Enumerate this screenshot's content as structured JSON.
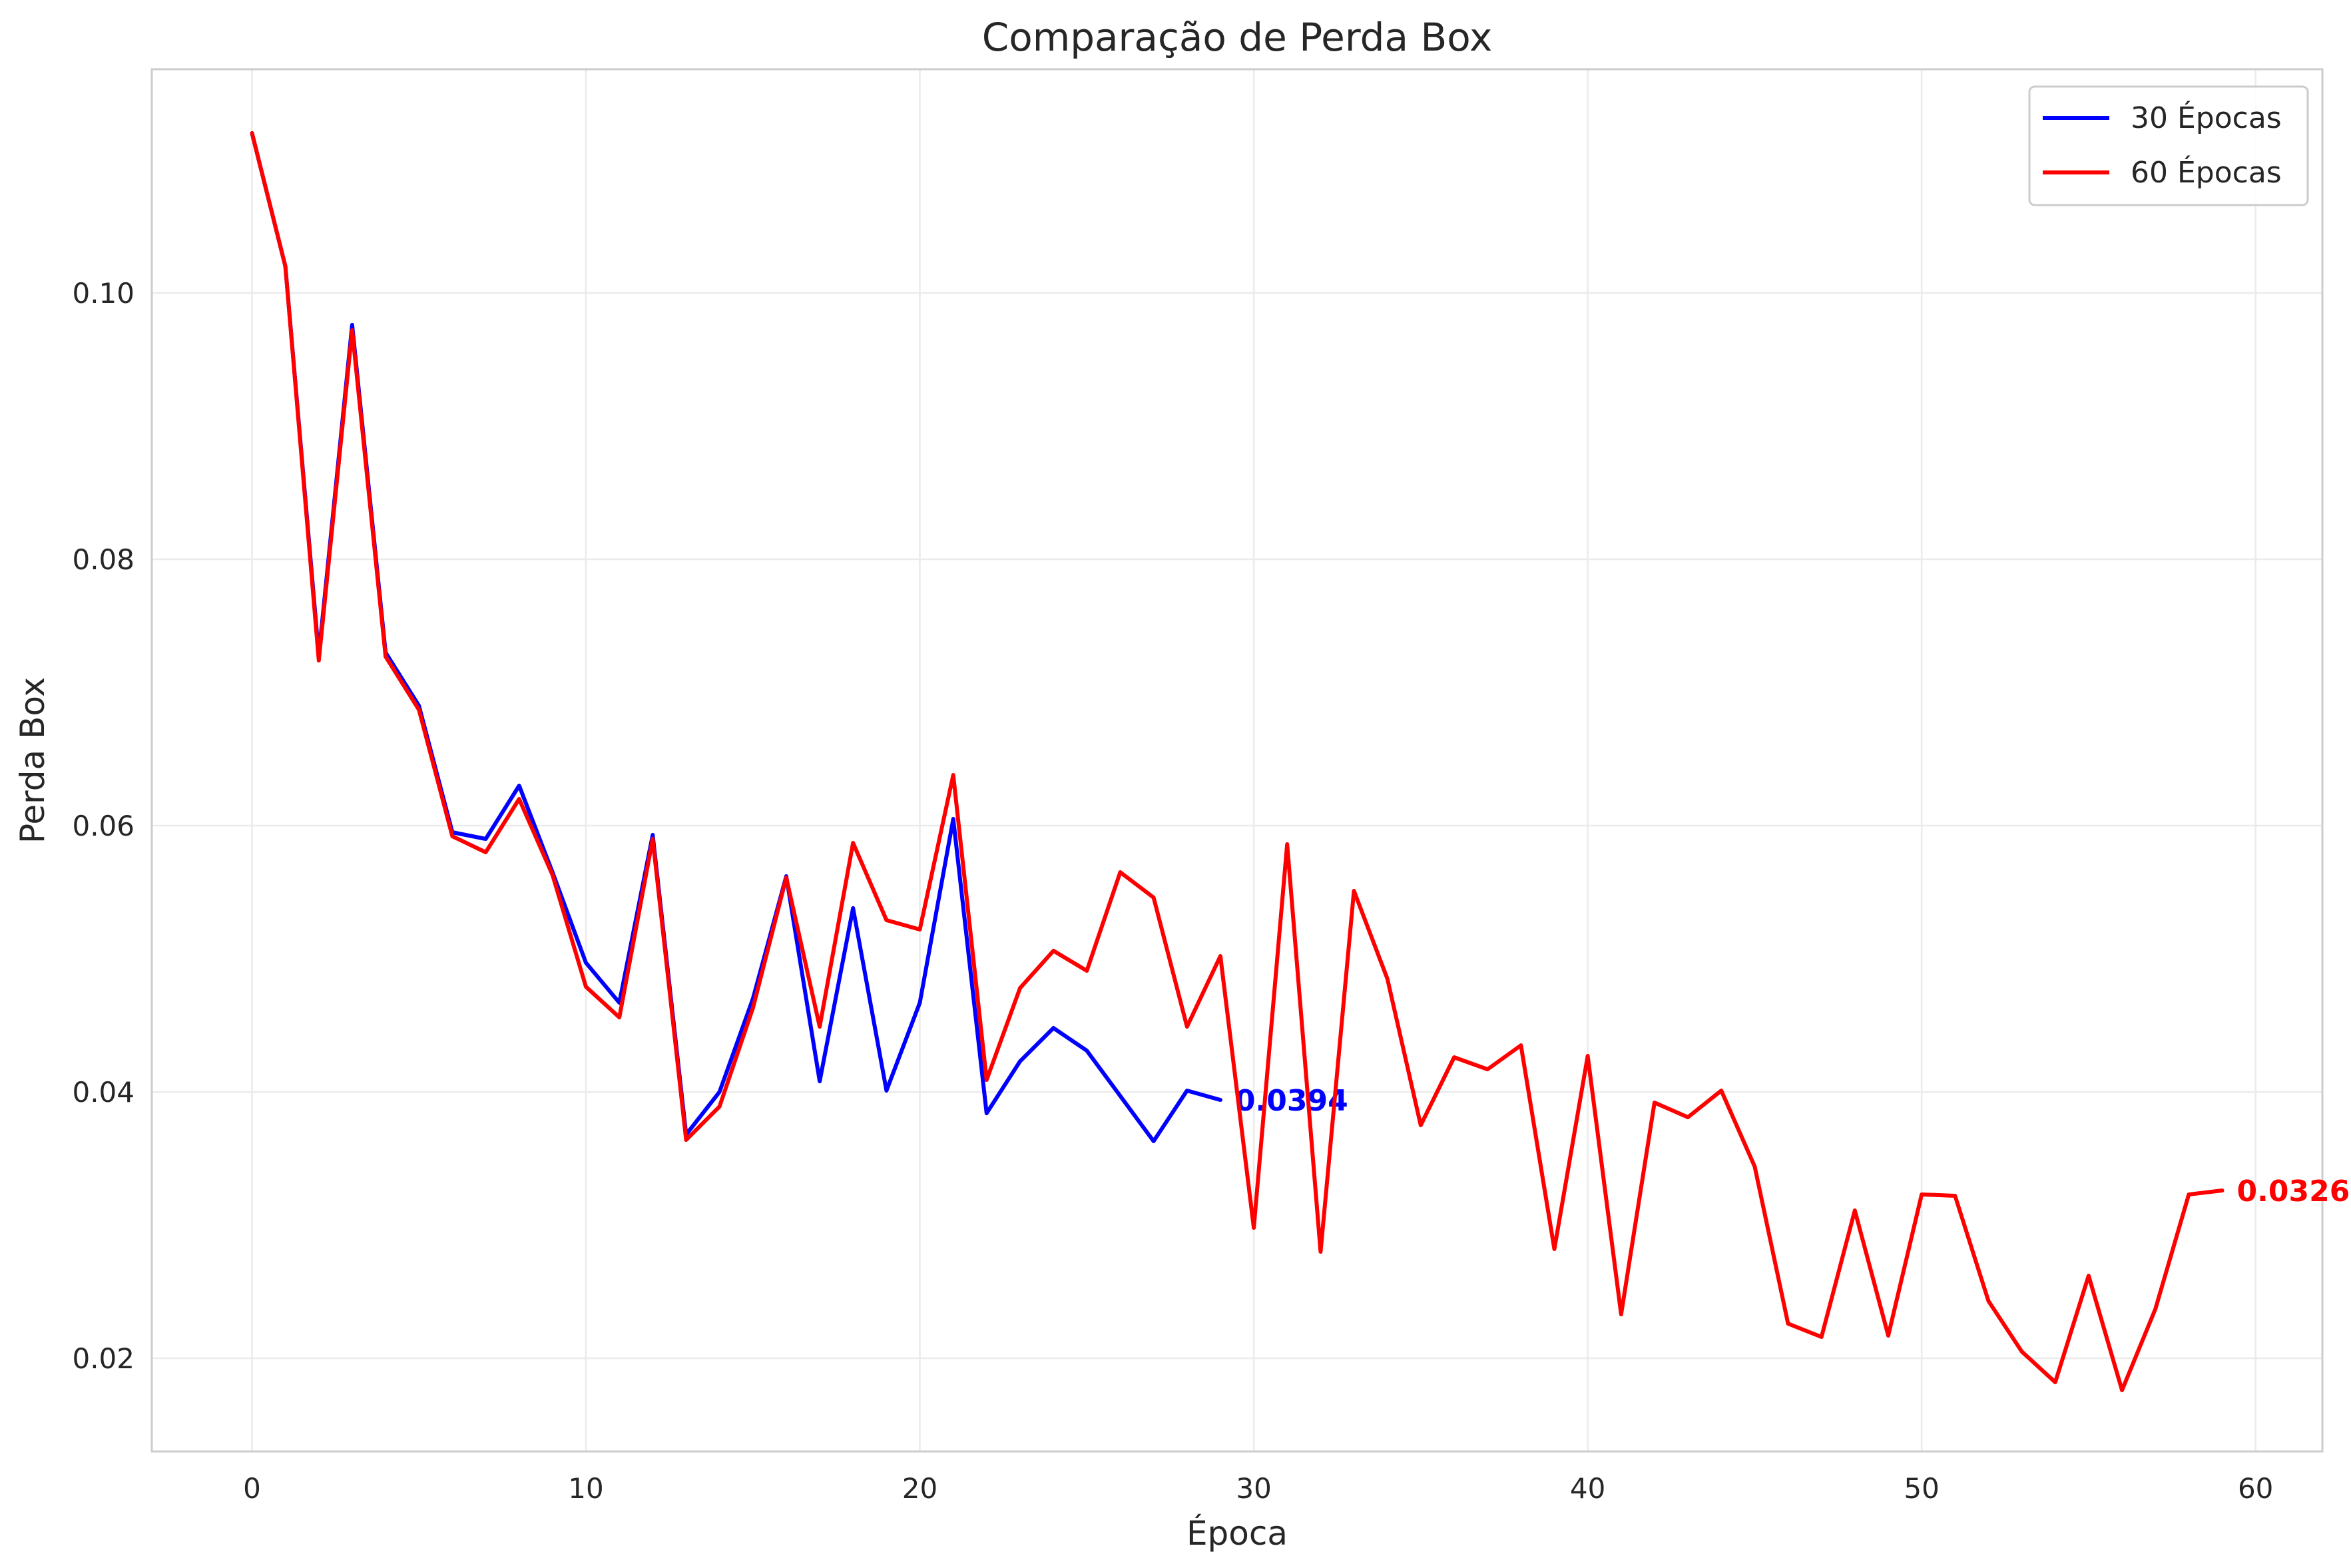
{
  "chart_data": {
    "type": "line",
    "title": "Comparação de Perda Box",
    "xlabel": "Época",
    "ylabel": "Perda Box",
    "xlim": [
      -3,
      62
    ],
    "ylim": [
      0.013,
      0.1168
    ],
    "x_ticks": [
      0,
      10,
      20,
      30,
      40,
      50,
      60
    ],
    "y_ticks": [
      0.02,
      0.04,
      0.06,
      0.08,
      0.1
    ],
    "x_tick_labels": [
      "0",
      "10",
      "20",
      "30",
      "40",
      "50",
      "60"
    ],
    "y_tick_labels": [
      "0.02",
      "0.04",
      "0.06",
      "0.08",
      "0.10"
    ],
    "grid": true,
    "legend_position": "top-right",
    "series": [
      {
        "name": "30 Épocas",
        "color": "#0000ff",
        "end_label": "0.0394",
        "x": [
          0,
          1,
          2,
          3,
          4,
          5,
          6,
          7,
          8,
          9,
          10,
          11,
          12,
          13,
          14,
          15,
          16,
          17,
          18,
          19,
          20,
          21,
          22,
          23,
          24,
          25,
          26,
          27,
          28,
          29
        ],
        "values": [
          0.112,
          0.102,
          0.0728,
          0.0976,
          0.073,
          0.069,
          0.0595,
          0.059,
          0.063,
          0.0565,
          0.0497,
          0.0467,
          0.0593,
          0.0368,
          0.04,
          0.047,
          0.0562,
          0.0408,
          0.0538,
          0.0401,
          0.0467,
          0.0605,
          0.0384,
          0.0423,
          0.0448,
          0.0431,
          0.0397,
          0.0363,
          0.0401,
          0.0394
        ]
      },
      {
        "name": "60 Épocas",
        "color": "#ff0000",
        "end_label": "0.0326",
        "x": [
          0,
          1,
          2,
          3,
          4,
          5,
          6,
          7,
          8,
          9,
          10,
          11,
          12,
          13,
          14,
          15,
          16,
          17,
          18,
          19,
          20,
          21,
          22,
          23,
          24,
          25,
          26,
          27,
          28,
          29,
          30,
          31,
          32,
          33,
          34,
          35,
          36,
          37,
          38,
          39,
          40,
          41,
          42,
          43,
          44,
          45,
          46,
          47,
          48,
          49,
          50,
          51,
          52,
          53,
          54,
          55,
          56,
          57,
          58,
          59
        ],
        "values": [
          0.112,
          0.102,
          0.0724,
          0.0972,
          0.0727,
          0.0687,
          0.0592,
          0.058,
          0.062,
          0.0563,
          0.0479,
          0.0456,
          0.059,
          0.0364,
          0.0389,
          0.0463,
          0.0561,
          0.0449,
          0.0587,
          0.0529,
          0.0522,
          0.0638,
          0.0409,
          0.0478,
          0.0506,
          0.0491,
          0.0565,
          0.0546,
          0.0449,
          0.0502,
          0.0298,
          0.0586,
          0.028,
          0.0551,
          0.0485,
          0.0375,
          0.0426,
          0.0417,
          0.0435,
          0.0282,
          0.0427,
          0.0233,
          0.0392,
          0.0381,
          0.0401,
          0.0344,
          0.0226,
          0.0216,
          0.0311,
          0.0217,
          0.0323,
          0.0322,
          0.0243,
          0.0205,
          0.0182,
          0.0262,
          0.0176,
          0.0237,
          0.0323,
          0.0326
        ]
      }
    ]
  }
}
